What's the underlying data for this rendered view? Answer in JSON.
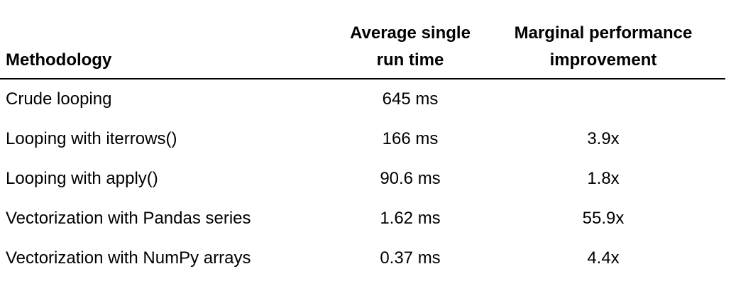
{
  "table": {
    "headers": [
      "Methodology",
      "Average single run time",
      "Marginal performance improvement"
    ],
    "rows": [
      [
        "Crude looping",
        "645 ms"
      ],
      [
        "Looping with iterrows()",
        "166 ms",
        "3.9x"
      ],
      [
        "Looping with apply()",
        "90.6 ms",
        "1.8x"
      ],
      [
        "Vectorization with Pandas series",
        "1.62 ms",
        "55.9x"
      ],
      [
        "Vectorization with NumPy arrays",
        "0.37 ms",
        "4.4x"
      ]
    ]
  }
}
